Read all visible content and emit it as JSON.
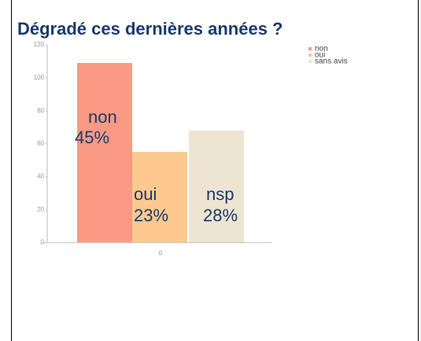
{
  "chart_data": {
    "type": "bar",
    "title": "Dégradé ces dernières années ?",
    "categories": [
      "0"
    ],
    "series": [
      {
        "name": "non",
        "color": "#fa9a85",
        "values": [
          109
        ]
      },
      {
        "name": "oui",
        "color": "#fdc98f",
        "values": [
          55
        ]
      },
      {
        "name": "sans avis",
        "color": "#ede5d2",
        "values": [
          68
        ]
      }
    ],
    "annotations": [
      [
        "non",
        "45%"
      ],
      [
        "oui",
        "23%"
      ],
      [
        "nsp",
        "28%"
      ]
    ],
    "ylim": [
      0,
      120
    ],
    "yticks": [
      0,
      20,
      40,
      60,
      80,
      100,
      120
    ],
    "grid": false,
    "legend": "top-right"
  }
}
